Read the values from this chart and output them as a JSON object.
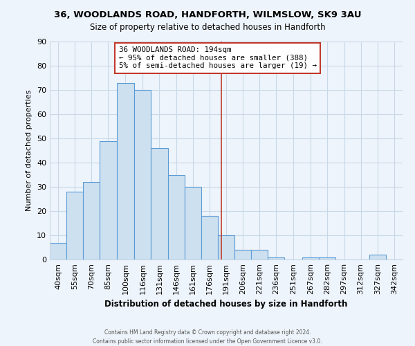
{
  "title": "36, WOODLANDS ROAD, HANDFORTH, WILMSLOW, SK9 3AU",
  "subtitle": "Size of property relative to detached houses in Handforth",
  "xlabel": "Distribution of detached houses by size in Handforth",
  "ylabel": "Number of detached properties",
  "bin_labels": [
    "40sqm",
    "55sqm",
    "70sqm",
    "85sqm",
    "100sqm",
    "116sqm",
    "131sqm",
    "146sqm",
    "161sqm",
    "176sqm",
    "191sqm",
    "206sqm",
    "221sqm",
    "236sqm",
    "251sqm",
    "267sqm",
    "282sqm",
    "297sqm",
    "312sqm",
    "327sqm",
    "342sqm"
  ],
  "bins_start": [
    40,
    55,
    70,
    85,
    100,
    116,
    131,
    146,
    161,
    176,
    191,
    206,
    221,
    236,
    251,
    267,
    282,
    297,
    312,
    327,
    342,
    357
  ],
  "heights": [
    7,
    28,
    32,
    49,
    73,
    70,
    46,
    35,
    30,
    18,
    10,
    4,
    4,
    1,
    0,
    1,
    1,
    0,
    0,
    2,
    0
  ],
  "vline_x": 194,
  "bar_color": "#cde0f0",
  "bar_edge_color": "#5b9bd5",
  "vline_color": "#c0392b",
  "annotation_line1": "36 WOODLANDS ROAD: 194sqm",
  "annotation_line2": "← 95% of detached houses are smaller (388)",
  "annotation_line3": "5% of semi-detached houses are larger (19) →",
  "footer": "Contains HM Land Registry data © Crown copyright and database right 2024.\nContains public sector information licensed under the Open Government Licence v3.0.",
  "ylim": [
    0,
    90
  ],
  "xlim": [
    40,
    357
  ],
  "background_color": "#eef4fb",
  "grid_color": "#c8d8e8",
  "yticks": [
    0,
    10,
    20,
    30,
    40,
    50,
    60,
    70,
    80,
    90
  ]
}
